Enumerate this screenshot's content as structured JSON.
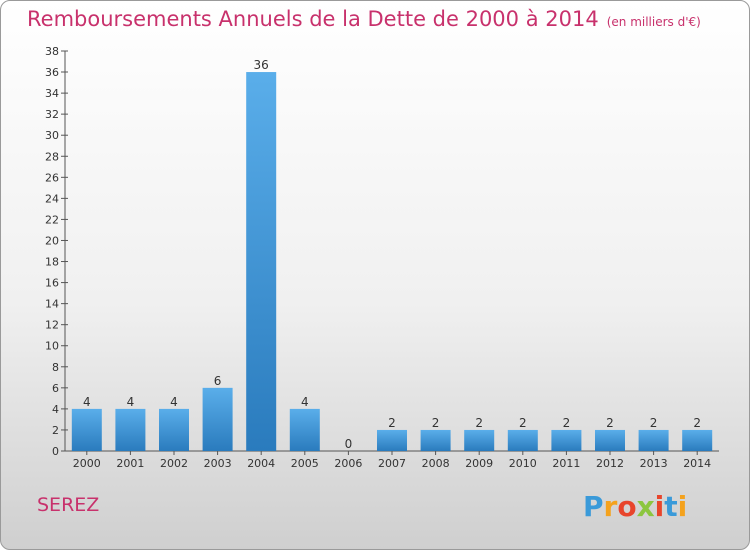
{
  "chart_data": {
    "type": "bar",
    "title": "Remboursements Annuels de la Dette de 2000 à 2014",
    "unit_note": "(en milliers d'€)",
    "categories": [
      "2000",
      "2001",
      "2002",
      "2003",
      "2004",
      "2005",
      "2006",
      "2007",
      "2008",
      "2009",
      "2010",
      "2011",
      "2012",
      "2013",
      "2014"
    ],
    "values": [
      4,
      4,
      4,
      6,
      36,
      4,
      0,
      2,
      2,
      2,
      2,
      2,
      2,
      2,
      2
    ],
    "ylim": [
      0,
      38
    ],
    "yticks": [
      0,
      2,
      4,
      6,
      8,
      10,
      12,
      14,
      16,
      18,
      20,
      22,
      24,
      26,
      28,
      30,
      32,
      34,
      36,
      38
    ],
    "xlabel": "",
    "ylabel": "",
    "grid": false
  },
  "commune": "SEREZ",
  "logo": {
    "letters": [
      "P",
      "r",
      "o",
      "x",
      "i",
      "t",
      "i"
    ],
    "colors": [
      "#3a9ad9",
      "#f4a21d",
      "#e8452c",
      "#8cc63f",
      "#e8452c",
      "#3a9ad9",
      "#f4a21d"
    ]
  },
  "colors": {
    "title": "#c8316c",
    "bar_top": "#5aaeea",
    "bar_bottom": "#2a7bbd"
  }
}
